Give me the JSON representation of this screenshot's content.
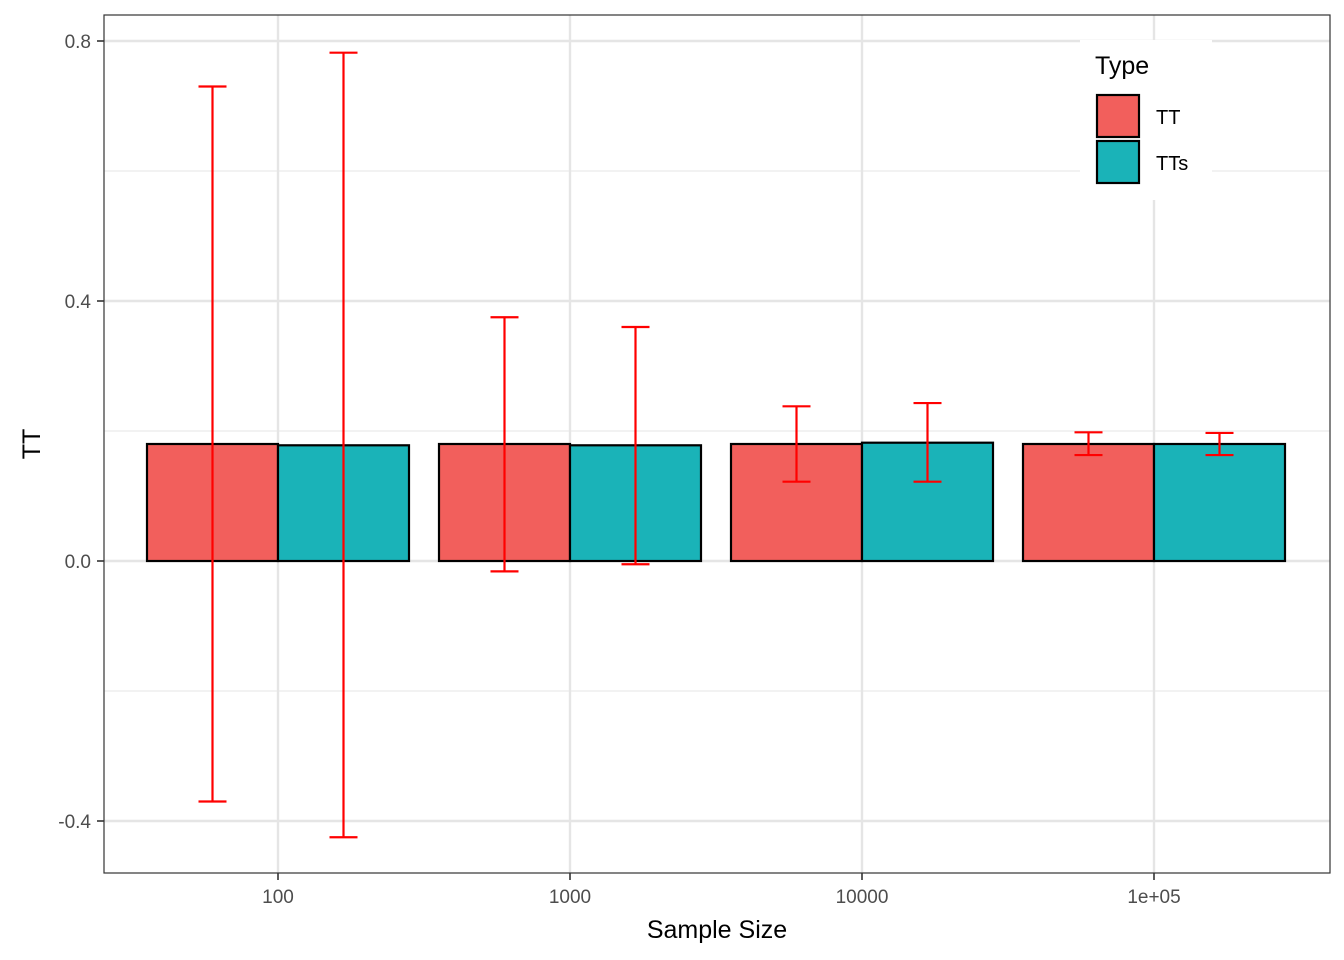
{
  "chart_data": {
    "type": "bar",
    "xlabel": "Sample Size",
    "ylabel": "TT",
    "categories": [
      "100",
      "1000",
      "10000",
      "1e+05"
    ],
    "ylim": [
      -0.48,
      0.84
    ],
    "yticks": [
      "-0.4",
      "0.0",
      "0.4",
      "0.8"
    ],
    "ytick_values": [
      -0.4,
      0.0,
      0.4,
      0.8
    ],
    "grid": true,
    "legend": {
      "title": "Type",
      "placement": "top-right",
      "entries": [
        "TT",
        "TTs"
      ]
    },
    "series": [
      {
        "name": "TT",
        "color": "#f25f5c",
        "values": [
          0.18,
          0.18,
          0.18,
          0.18
        ],
        "error_low": [
          -0.37,
          -0.016,
          0.122,
          0.163
        ],
        "error_high": [
          0.73,
          0.375,
          0.238,
          0.198
        ]
      },
      {
        "name": "TTs",
        "color": "#1ab3b8",
        "values": [
          0.178,
          0.178,
          0.182,
          0.18
        ],
        "error_low": [
          -0.425,
          -0.005,
          0.122,
          0.163
        ],
        "error_high": [
          0.782,
          0.36,
          0.243,
          0.197
        ]
      }
    ],
    "errorbar_color": "#ff0000"
  }
}
